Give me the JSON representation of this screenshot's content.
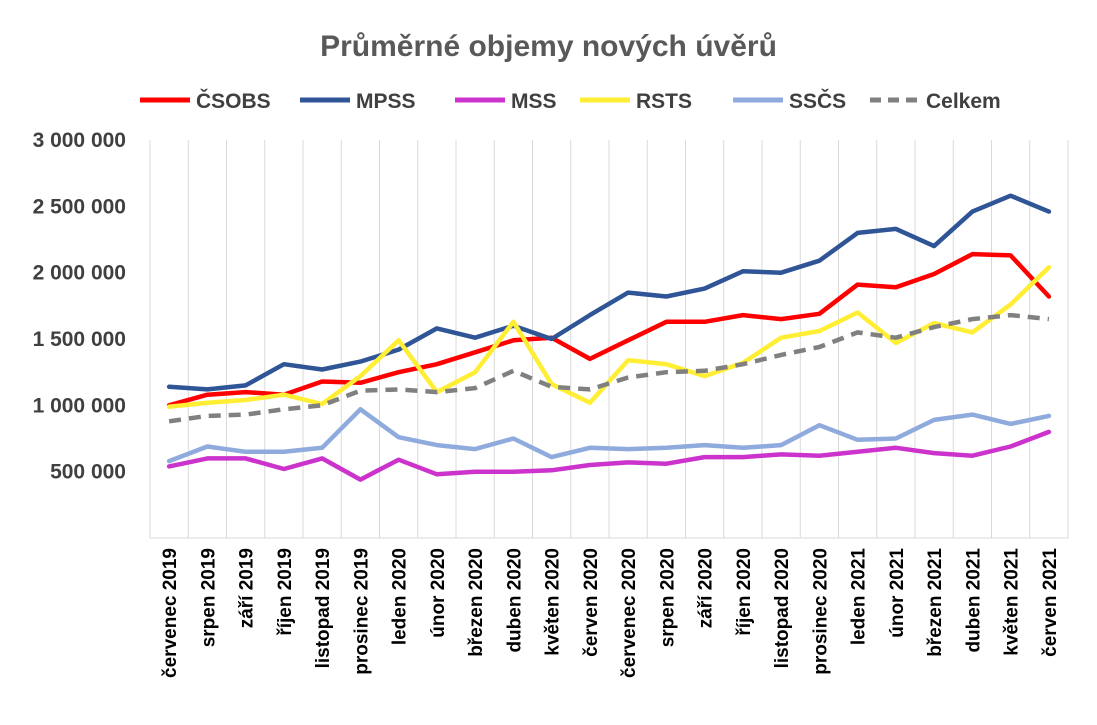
{
  "chart_data": {
    "type": "line",
    "title": "Průměrné objemy nových úvěrů",
    "xlabel": "",
    "ylabel": "",
    "ylim": [
      0,
      3000000
    ],
    "y_tick_labels": [
      "500 000",
      "1 000 000",
      "1 500 000",
      "2 000 000",
      "2 500 000",
      "3 000 000"
    ],
    "y_tick_values": [
      500000,
      1000000,
      1500000,
      2000000,
      2500000,
      3000000
    ],
    "grid": "vertical",
    "legend_position": "top",
    "categories": [
      "červenec 2019",
      "srpen 2019",
      "září 2019",
      "říjen 2019",
      "listopad 2019",
      "prosinec 2019",
      "leden 2020",
      "únor 2020",
      "březen 2020",
      "duben 2020",
      "květen 2020",
      "červen 2020",
      "červenec 2020",
      "srpen 2020",
      "září 2020",
      "říjen 2020",
      "listopad 2020",
      "prosinec 2020",
      "leden 2021",
      "únor 2021",
      "březen 2021",
      "duben 2021",
      "květen 2021",
      "červen 2021"
    ],
    "series": [
      {
        "name": "ČSOBS",
        "color": "#ff0000",
        "dash": "solid",
        "values": [
          1000000,
          1080000,
          1100000,
          1080000,
          1180000,
          1170000,
          1250000,
          1310000,
          1400000,
          1490000,
          1510000,
          1350000,
          1490000,
          1630000,
          1630000,
          1680000,
          1650000,
          1690000,
          1910000,
          1890000,
          1990000,
          2140000,
          2130000,
          1820000
        ]
      },
      {
        "name": "MPSS",
        "color": "#2f5597",
        "dash": "solid",
        "values": [
          1140000,
          1120000,
          1150000,
          1310000,
          1270000,
          1330000,
          1420000,
          1580000,
          1510000,
          1600000,
          1500000,
          1680000,
          1850000,
          1820000,
          1880000,
          2010000,
          2000000,
          2090000,
          2300000,
          2330000,
          2200000,
          2460000,
          2580000,
          2460000
        ]
      },
      {
        "name": "MSS",
        "color": "#cc33cc",
        "dash": "solid",
        "values": [
          540000,
          600000,
          600000,
          520000,
          600000,
          440000,
          590000,
          480000,
          500000,
          500000,
          510000,
          550000,
          570000,
          560000,
          610000,
          610000,
          630000,
          620000,
          650000,
          680000,
          640000,
          620000,
          690000,
          800000
        ]
      },
      {
        "name": "RSTS",
        "color": "#ffee33",
        "dash": "solid",
        "values": [
          990000,
          1020000,
          1040000,
          1080000,
          1010000,
          1220000,
          1490000,
          1100000,
          1250000,
          1630000,
          1160000,
          1020000,
          1340000,
          1310000,
          1220000,
          1320000,
          1510000,
          1560000,
          1700000,
          1470000,
          1620000,
          1550000,
          1760000,
          2040000
        ]
      },
      {
        "name": "SSČS",
        "color": "#8faadc",
        "dash": "solid",
        "values": [
          580000,
          690000,
          650000,
          650000,
          680000,
          970000,
          760000,
          700000,
          670000,
          750000,
          610000,
          680000,
          670000,
          680000,
          700000,
          680000,
          700000,
          850000,
          740000,
          750000,
          890000,
          930000,
          860000,
          920000
        ]
      },
      {
        "name": "Celkem",
        "color": "#808080",
        "dash": "dashed",
        "values": [
          880000,
          920000,
          930000,
          970000,
          1000000,
          1110000,
          1120000,
          1100000,
          1130000,
          1260000,
          1140000,
          1120000,
          1210000,
          1250000,
          1260000,
          1310000,
          1380000,
          1440000,
          1550000,
          1510000,
          1590000,
          1650000,
          1680000,
          1650000
        ]
      }
    ]
  }
}
